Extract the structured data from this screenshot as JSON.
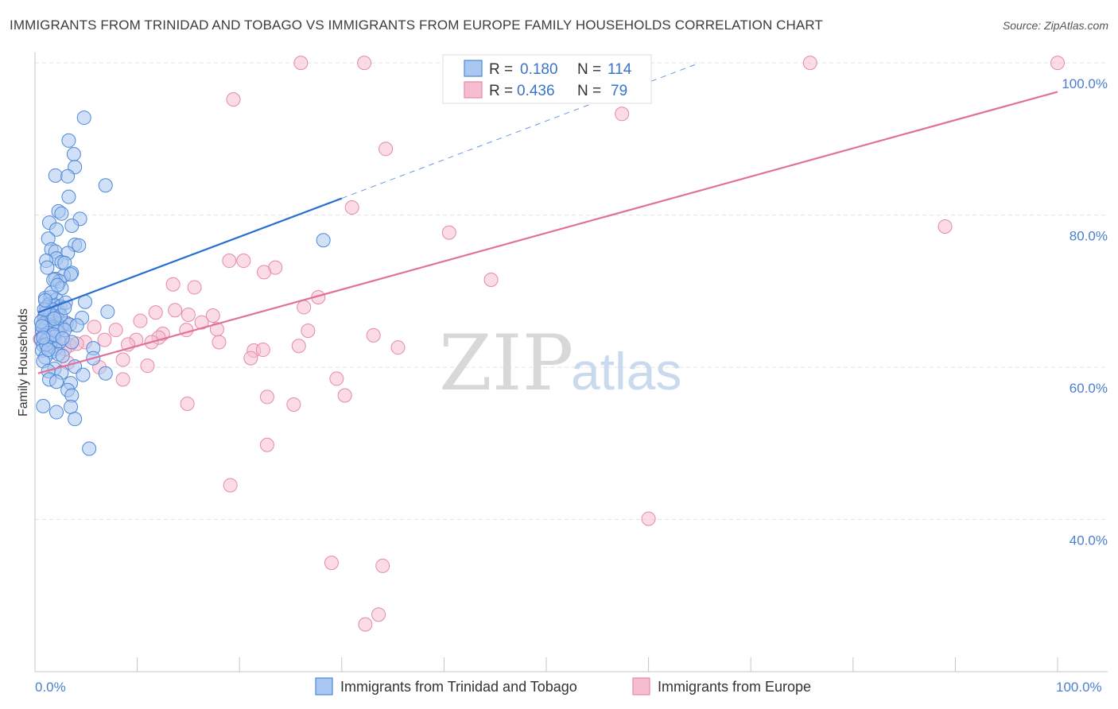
{
  "title": "IMMIGRANTS FROM TRINIDAD AND TOBAGO VS IMMIGRANTS FROM EUROPE FAMILY HOUSEHOLDS CORRELATION CHART",
  "source": "Source: ZipAtlas.com",
  "watermark": {
    "zip": "ZIP",
    "atlas": "atlas"
  },
  "legend": {
    "r_label": "R =",
    "n_label": "N =",
    "rows": [
      {
        "r": "0.180",
        "n": "114"
      },
      {
        "r": "0.436",
        "n": "79"
      }
    ]
  },
  "colors": {
    "blue_fill": "#a9c7f0",
    "blue_stroke": "#4d88d8",
    "blue_line": "#2a6fd0",
    "pink_fill": "#f6bdd1",
    "pink_stroke": "#e38aaa",
    "pink_line": "#e0719b",
    "tick_text": "#4a7fd0"
  },
  "chart_data": {
    "type": "scatter",
    "title": "IMMIGRANTS FROM TRINIDAD AND TOBAGO VS IMMIGRANTS FROM EUROPE FAMILY HOUSEHOLDS CORRELATION CHART",
    "xlabel": "",
    "ylabel": "Family Households",
    "xlim": [
      0,
      100
    ],
    "ylim": [
      20,
      102
    ],
    "x_tick_labels": [
      "0.0%",
      "100.0%"
    ],
    "y_ticks": [
      40,
      60,
      80,
      100
    ],
    "y_tick_labels": [
      "40.0%",
      "60.0%",
      "80.0%",
      "100.0%"
    ],
    "grid": true,
    "legend_position": "top-center",
    "series": [
      {
        "name": "Immigrants from Trinidad and Tobago",
        "r": 0.18,
        "n": 114,
        "trend": {
          "x": [
            0.3,
            30
          ],
          "y": [
            67.2,
            82.2
          ],
          "dashed_extension": {
            "x": [
              30,
              65
            ],
            "y": [
              82.2,
              100
            ]
          }
        },
        "points": [
          [
            4.8,
            92.8
          ],
          [
            3.3,
            89.8
          ],
          [
            3.8,
            88.0
          ],
          [
            3.9,
            86.3
          ],
          [
            2.0,
            85.2
          ],
          [
            3.2,
            85.1
          ],
          [
            6.9,
            83.9
          ],
          [
            3.3,
            82.4
          ],
          [
            2.3,
            80.5
          ],
          [
            2.6,
            80.2
          ],
          [
            4.4,
            79.5
          ],
          [
            1.4,
            79.0
          ],
          [
            3.6,
            78.6
          ],
          [
            2.1,
            78.1
          ],
          [
            1.3,
            76.9
          ],
          [
            3.9,
            76.1
          ],
          [
            4.3,
            76.0
          ],
          [
            1.6,
            75.5
          ],
          [
            2.0,
            75.2
          ],
          [
            3.2,
            75.0
          ],
          [
            2.1,
            74.3
          ],
          [
            1.1,
            74.0
          ],
          [
            2.6,
            73.8
          ],
          [
            2.9,
            73.7
          ],
          [
            1.2,
            73.1
          ],
          [
            3.6,
            72.4
          ],
          [
            2.8,
            72.0
          ],
          [
            3.5,
            72.2
          ],
          [
            2.0,
            71.6
          ],
          [
            2.4,
            71.3
          ],
          [
            1.8,
            71.5
          ],
          [
            2.6,
            70.4
          ],
          [
            1.0,
            69.1
          ],
          [
            1.5,
            69.2
          ],
          [
            2.1,
            68.9
          ],
          [
            4.9,
            68.6
          ],
          [
            1.4,
            68.3
          ],
          [
            2.0,
            68.1
          ],
          [
            2.5,
            68.0
          ],
          [
            1.1,
            67.9
          ],
          [
            1.7,
            67.6
          ],
          [
            2.3,
            67.4
          ],
          [
            7.1,
            67.3
          ],
          [
            1.0,
            67.1
          ],
          [
            1.3,
            66.9
          ],
          [
            1.8,
            66.7
          ],
          [
            0.9,
            66.5
          ],
          [
            4.6,
            66.5
          ],
          [
            1.2,
            66.2
          ],
          [
            1.6,
            66.0
          ],
          [
            2.1,
            65.8
          ],
          [
            3.1,
            65.8
          ],
          [
            0.8,
            65.7
          ],
          [
            1.4,
            65.5
          ],
          [
            2.6,
            65.3
          ],
          [
            3.4,
            65.6
          ],
          [
            1.0,
            65.2
          ],
          [
            1.7,
            65.0
          ],
          [
            0.7,
            64.8
          ],
          [
            2.2,
            64.7
          ],
          [
            1.3,
            64.5
          ],
          [
            0.9,
            64.2
          ],
          [
            1.9,
            64.0
          ],
          [
            0.6,
            63.7
          ],
          [
            1.1,
            63.5
          ],
          [
            2.4,
            63.3
          ],
          [
            1.5,
            63.2
          ],
          [
            3.6,
            63.3
          ],
          [
            0.8,
            62.9
          ],
          [
            1.2,
            62.6
          ],
          [
            2.0,
            62.4
          ],
          [
            0.7,
            62.2
          ],
          [
            1.6,
            62.0
          ],
          [
            2.3,
            61.7
          ],
          [
            5.7,
            62.5
          ],
          [
            2.7,
            61.5
          ],
          [
            1.0,
            61.3
          ],
          [
            0.8,
            60.8
          ],
          [
            5.7,
            61.2
          ],
          [
            3.9,
            60.1
          ],
          [
            1.9,
            59.8
          ],
          [
            1.3,
            59.5
          ],
          [
            2.6,
            59.3
          ],
          [
            4.7,
            59.0
          ],
          [
            6.9,
            59.2
          ],
          [
            1.4,
            58.4
          ],
          [
            2.1,
            58.1
          ],
          [
            3.5,
            57.9
          ],
          [
            3.2,
            57.0
          ],
          [
            3.6,
            56.3
          ],
          [
            0.8,
            54.9
          ],
          [
            3.5,
            54.8
          ],
          [
            2.1,
            54.1
          ],
          [
            3.9,
            53.2
          ],
          [
            5.3,
            49.3
          ],
          [
            28.2,
            76.7
          ],
          [
            1.1,
            63.0
          ],
          [
            2.9,
            64.9
          ],
          [
            1.5,
            67.0
          ],
          [
            0.6,
            66.0
          ],
          [
            2.5,
            66.8
          ],
          [
            1.8,
            64.3
          ],
          [
            0.9,
            67.6
          ],
          [
            2.7,
            63.8
          ],
          [
            1.3,
            62.3
          ],
          [
            3.0,
            68.5
          ],
          [
            1.6,
            69.8
          ],
          [
            2.2,
            70.8
          ],
          [
            0.7,
            65.4
          ],
          [
            4.1,
            65.5
          ],
          [
            1.0,
            68.8
          ],
          [
            2.9,
            67.8
          ],
          [
            1.9,
            66.4
          ],
          [
            0.8,
            63.9
          ]
        ]
      },
      {
        "name": "Immigrants from Europe",
        "r": 0.436,
        "n": 79,
        "trend": {
          "x": [
            0.3,
            100
          ],
          "y": [
            59.2,
            96.2
          ]
        },
        "points": [
          [
            26.0,
            100.0
          ],
          [
            32.2,
            100.0
          ],
          [
            47.0,
            100.0
          ],
          [
            50.0,
            100.0
          ],
          [
            75.8,
            100.0
          ],
          [
            100.0,
            100.0
          ],
          [
            19.4,
            95.2
          ],
          [
            57.4,
            93.3
          ],
          [
            34.3,
            88.7
          ],
          [
            31.0,
            81.0
          ],
          [
            40.5,
            77.7
          ],
          [
            89.0,
            78.5
          ],
          [
            19.0,
            74.0
          ],
          [
            20.4,
            74.0
          ],
          [
            23.5,
            73.1
          ],
          [
            22.4,
            72.5
          ],
          [
            44.6,
            71.5
          ],
          [
            13.5,
            70.9
          ],
          [
            15.6,
            70.5
          ],
          [
            27.7,
            69.2
          ],
          [
            26.3,
            67.9
          ],
          [
            13.7,
            67.5
          ],
          [
            11.8,
            67.2
          ],
          [
            15.0,
            66.9
          ],
          [
            17.4,
            66.8
          ],
          [
            10.3,
            66.1
          ],
          [
            16.3,
            65.9
          ],
          [
            5.8,
            65.3
          ],
          [
            7.9,
            64.9
          ],
          [
            14.8,
            64.9
          ],
          [
            17.8,
            65.0
          ],
          [
            26.7,
            64.8
          ],
          [
            12.5,
            64.4
          ],
          [
            33.1,
            64.2
          ],
          [
            12.1,
            63.9
          ],
          [
            9.9,
            63.6
          ],
          [
            6.8,
            63.6
          ],
          [
            4.9,
            63.3
          ],
          [
            11.4,
            63.3
          ],
          [
            18.0,
            63.3
          ],
          [
            9.1,
            63.0
          ],
          [
            25.8,
            62.8
          ],
          [
            35.5,
            62.6
          ],
          [
            21.4,
            62.2
          ],
          [
            22.3,
            62.3
          ],
          [
            21.1,
            61.2
          ],
          [
            8.6,
            61.0
          ],
          [
            3.2,
            60.6
          ],
          [
            6.3,
            60.0
          ],
          [
            11.0,
            60.2
          ],
          [
            29.5,
            58.5
          ],
          [
            8.6,
            58.4
          ],
          [
            22.7,
            56.1
          ],
          [
            30.3,
            56.3
          ],
          [
            14.9,
            55.2
          ],
          [
            25.3,
            55.1
          ],
          [
            22.7,
            49.8
          ],
          [
            19.1,
            44.5
          ],
          [
            60.0,
            40.1
          ],
          [
            29.0,
            34.3
          ],
          [
            34.0,
            33.9
          ],
          [
            33.6,
            27.5
          ],
          [
            32.3,
            26.2
          ],
          [
            1.0,
            65.9
          ],
          [
            1.6,
            65.4
          ],
          [
            2.2,
            64.9
          ],
          [
            1.3,
            64.2
          ],
          [
            2.7,
            63.9
          ],
          [
            1.9,
            63.5
          ],
          [
            3.4,
            62.9
          ],
          [
            4.1,
            63.1
          ],
          [
            0.9,
            66.6
          ],
          [
            1.5,
            62.7
          ],
          [
            2.4,
            66.1
          ],
          [
            3.0,
            65.7
          ],
          [
            0.7,
            64.6
          ],
          [
            1.8,
            65.2
          ],
          [
            2.9,
            62.4
          ],
          [
            0.5,
            63.7
          ]
        ]
      }
    ]
  }
}
